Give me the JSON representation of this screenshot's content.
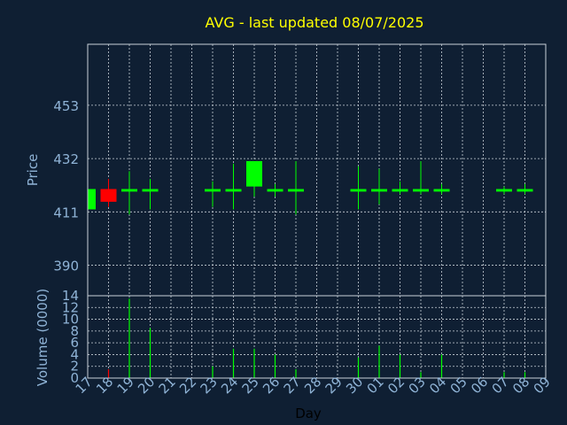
{
  "chart_data": {
    "type": "candlestick",
    "title": "AVG - last updated 08/07/2025",
    "xlabel": "Day",
    "colors": {
      "up": "#00ff00",
      "down": "#ff0000",
      "background": "#0f1f33",
      "title": "#ffff00",
      "axis_text": "#8fb3d6"
    },
    "categories": [
      "17",
      "18",
      "19",
      "20",
      "21",
      "22",
      "23",
      "24",
      "25",
      "26",
      "27",
      "28",
      "29",
      "30",
      "01",
      "02",
      "03",
      "04",
      "05",
      "06",
      "07",
      "08",
      "09"
    ],
    "price_panel": {
      "ylabel": "Price",
      "ylim": [
        378,
        477
      ],
      "yticks": [
        390,
        411,
        432,
        453
      ],
      "candles": [
        {
          "x": "17",
          "open": 412,
          "high": 420,
          "low": 412,
          "close": 420
        },
        {
          "x": "18",
          "open": 420,
          "high": 424,
          "low": 413,
          "close": 415
        },
        {
          "x": "19",
          "open": 419,
          "high": 427,
          "low": 410,
          "close": 420
        },
        {
          "x": "20",
          "open": 419,
          "high": 424,
          "low": 412,
          "close": 420
        },
        {
          "x": "23",
          "open": 419,
          "high": 423,
          "low": 413,
          "close": 420
        },
        {
          "x": "24",
          "open": 419,
          "high": 430,
          "low": 412,
          "close": 420
        },
        {
          "x": "25",
          "open": 421,
          "high": 431,
          "low": 417,
          "close": 431
        },
        {
          "x": "26",
          "open": 419,
          "high": 422,
          "low": 417,
          "close": 420
        },
        {
          "x": "27",
          "open": 419,
          "high": 431,
          "low": 410,
          "close": 420
        },
        {
          "x": "30",
          "open": 419,
          "high": 429,
          "low": 412,
          "close": 420
        },
        {
          "x": "01",
          "open": 419,
          "high": 428,
          "low": 414,
          "close": 420
        },
        {
          "x": "02",
          "open": 419,
          "high": 423,
          "low": 418,
          "close": 420
        },
        {
          "x": "03",
          "open": 419,
          "high": 431,
          "low": 418,
          "close": 420
        },
        {
          "x": "04",
          "open": 419,
          "high": 422,
          "low": 418,
          "close": 420
        },
        {
          "x": "07",
          "open": 419,
          "high": 421,
          "low": 418,
          "close": 420
        },
        {
          "x": "08",
          "open": 419,
          "high": 422,
          "low": 418,
          "close": 420
        }
      ]
    },
    "volume_panel": {
      "ylabel": "Volume (0000)",
      "ylim": [
        0,
        14
      ],
      "yticks": [
        0,
        2,
        4,
        6,
        8,
        10,
        12,
        14
      ],
      "bars": [
        {
          "x": "18",
          "value": 1.5,
          "direction": "down"
        },
        {
          "x": "19",
          "value": 13.5,
          "direction": "up"
        },
        {
          "x": "20",
          "value": 8.5,
          "direction": "up"
        },
        {
          "x": "23",
          "value": 2,
          "direction": "up"
        },
        {
          "x": "24",
          "value": 5,
          "direction": "up"
        },
        {
          "x": "25",
          "value": 5,
          "direction": "up"
        },
        {
          "x": "26",
          "value": 4,
          "direction": "up"
        },
        {
          "x": "27",
          "value": 1.5,
          "direction": "up"
        },
        {
          "x": "30",
          "value": 3.5,
          "direction": "up"
        },
        {
          "x": "01",
          "value": 5.5,
          "direction": "up"
        },
        {
          "x": "02",
          "value": 4,
          "direction": "up"
        },
        {
          "x": "03",
          "value": 1,
          "direction": "up"
        },
        {
          "x": "04",
          "value": 4,
          "direction": "up"
        },
        {
          "x": "07",
          "value": 1,
          "direction": "up"
        },
        {
          "x": "08",
          "value": 1,
          "direction": "up"
        }
      ]
    },
    "grid": true
  }
}
